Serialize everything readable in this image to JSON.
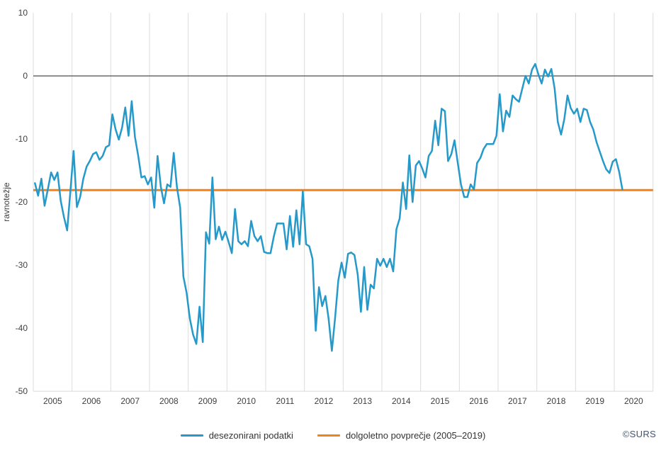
{
  "chart_data": {
    "type": "line",
    "title": "",
    "xlabel": "",
    "ylabel": "ravnotežje",
    "frequency": "monthly",
    "x_start": "2005-01",
    "x_end": "2020-03",
    "x_year_labels": [
      "2005",
      "2006",
      "2007",
      "2008",
      "2009",
      "2010",
      "2011",
      "2012",
      "2013",
      "2014",
      "2015",
      "2016",
      "2017",
      "2018",
      "2019",
      "2020"
    ],
    "y_ticks": [
      10,
      0,
      -10,
      -20,
      -30,
      -40,
      -50
    ],
    "ylim": [
      -50,
      10
    ],
    "grid": "vertical-year-gridlines-only",
    "legend_position": "bottom-center",
    "zero_line": 0,
    "series": [
      {
        "name": "desezonirani podatki",
        "color": "#2599c9",
        "values": [
          -17.0,
          -19.0,
          -16.3,
          -20.6,
          -18.0,
          -15.3,
          -16.5,
          -15.3,
          -19.8,
          -22.4,
          -24.5,
          -18.2,
          -11.9,
          -20.8,
          -19.2,
          -16.3,
          -14.4,
          -13.5,
          -12.4,
          -12.1,
          -13.3,
          -12.7,
          -11.3,
          -11.0,
          -6.1,
          -8.5,
          -10.1,
          -8.2,
          -5.0,
          -9.5,
          -4.0,
          -9.7,
          -12.7,
          -16.1,
          -15.9,
          -17.2,
          -16.1,
          -20.9,
          -12.7,
          -17.6,
          -20.2,
          -17.2,
          -17.6,
          -12.2,
          -17.6,
          -20.9,
          -31.8,
          -34.4,
          -38.5,
          -41.0,
          -42.5,
          -36.6,
          -42.2,
          -24.8,
          -26.6,
          -16.1,
          -25.9,
          -23.9,
          -26.0,
          -24.7,
          -26.3,
          -28.1,
          -21.1,
          -26.2,
          -26.7,
          -26.2,
          -27.0,
          -23.0,
          -25.4,
          -26.2,
          -25.4,
          -27.9,
          -28.1,
          -28.1,
          -25.5,
          -23.4,
          -23.4,
          -23.4,
          -27.5,
          -22.2,
          -27.1,
          -21.3,
          -26.7,
          -18.3,
          -26.7,
          -27.0,
          -29.0,
          -40.4,
          -33.5,
          -36.5,
          -34.9,
          -38.5,
          -43.6,
          -38.3,
          -32.4,
          -29.6,
          -32.0,
          -28.2,
          -28.0,
          -28.4,
          -31.5,
          -37.4,
          -30.3,
          -37.1,
          -33.1,
          -33.7,
          -29.0,
          -30.1,
          -29.0,
          -30.3,
          -29.0,
          -31.0,
          -24.3,
          -22.6,
          -16.9,
          -21.1,
          -12.6,
          -20.0,
          -14.2,
          -13.5,
          -14.7,
          -16.1,
          -12.7,
          -11.9,
          -7.1,
          -11.0,
          -5.2,
          -5.6,
          -13.5,
          -12.4,
          -10.2,
          -13.8,
          -17.2,
          -19.2,
          -19.2,
          -17.2,
          -18.0,
          -13.8,
          -13.0,
          -11.6,
          -10.8,
          -10.8,
          -10.8,
          -9.5,
          -2.9,
          -8.8,
          -5.5,
          -6.5,
          -3.1,
          -3.7,
          -4.1,
          -2.0,
          0.0,
          -1.2,
          1.0,
          1.9,
          0.2,
          -1.2,
          1.0,
          -0.1,
          1.1,
          -2.0,
          -7.3,
          -9.3,
          -6.9,
          -3.1,
          -5.1,
          -6.0,
          -5.2,
          -7.3,
          -5.2,
          -5.4,
          -7.3,
          -8.5,
          -10.5,
          -12.0,
          -13.5,
          -14.8,
          -15.4,
          -13.6,
          -13.2,
          -15.2,
          -18.0
        ]
      },
      {
        "name": "dolgoletno povprečje (2005–2019)",
        "type": "constant-line",
        "color": "#f0821e",
        "value": -18.1
      }
    ]
  },
  "axis": {
    "y_label": "ravnotežje",
    "label_color": "#404040",
    "gridline_color": "#dcdcdc",
    "zero_line_color": "#4d4d4d",
    "axis_line_color": "#d9d9d9"
  },
  "legend": {
    "series_label": "desezonirani podatki",
    "average_label": "dolgoletno povprečje (2005–2019)"
  },
  "credit": "©SURS"
}
